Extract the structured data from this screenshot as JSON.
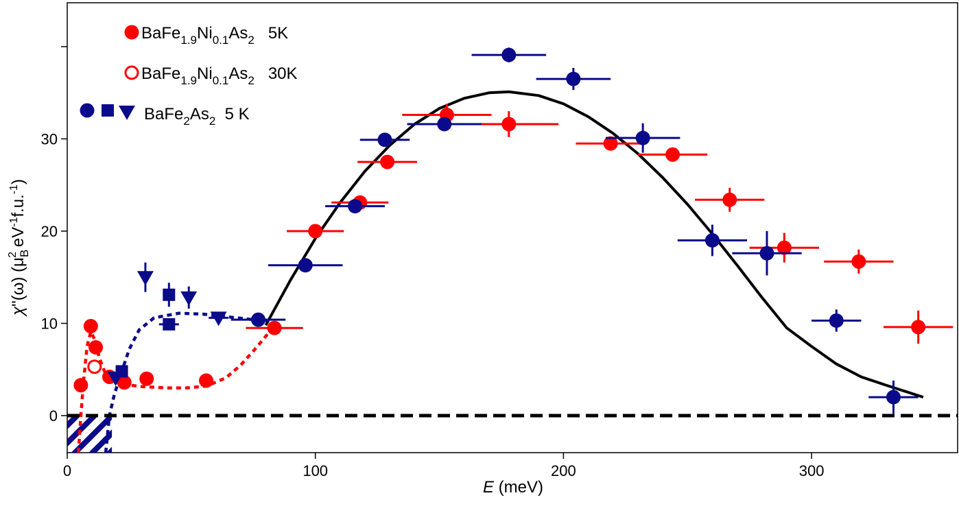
{
  "chart_data": {
    "type": "scatter",
    "xlabel_italic": "E",
    "xlabel_rest": " (meV)",
    "ylabel": {
      "chi": "χ",
      "rest1": "\"(ω) (μ",
      "sub_B": "B",
      "sup_2": "2",
      "rest2": " eV",
      "sup_m1a": "-1",
      "rest3": "f.u.",
      "sup_m1b": "-1",
      "close": ")"
    },
    "xlim": [
      0,
      360
    ],
    "ylim": [
      -4,
      45
    ],
    "xticks": [
      0,
      100,
      200,
      300
    ],
    "xtick_labels": [
      "0",
      "100",
      "200",
      "300"
    ],
    "yticks": [
      0,
      10,
      20,
      30
    ],
    "ytick_labels": [
      "0",
      "10",
      "20",
      "30"
    ],
    "y_minor_ticks": [
      40
    ],
    "colors": {
      "red": "#ff0000",
      "blue": "#0a0a8a",
      "black": "#000000"
    },
    "legend": [
      {
        "marker": "circle-filled",
        "color": "red",
        "parts": [
          [
            "BaFe",
            ""
          ],
          [
            "1.9",
            "sub"
          ],
          [
            "Ni",
            ""
          ],
          [
            "0.1",
            "sub"
          ],
          [
            "As",
            ""
          ],
          [
            "2",
            "sub"
          ],
          [
            "   5K",
            ""
          ]
        ]
      },
      {
        "marker": "circle-open",
        "color": "red",
        "parts": [
          [
            "BaFe",
            ""
          ],
          [
            "1.9",
            "sub"
          ],
          [
            "Ni",
            ""
          ],
          [
            "0.1",
            "sub"
          ],
          [
            "As",
            ""
          ],
          [
            "2",
            "sub"
          ],
          [
            "   30K",
            ""
          ]
        ]
      },
      {
        "marker": "circle-square-triangle",
        "color": "blue",
        "parts": [
          [
            "BaFe",
            ""
          ],
          [
            "2",
            "sub"
          ],
          [
            "As",
            ""
          ],
          [
            "2",
            "sub"
          ],
          [
            "  5 K",
            ""
          ]
        ]
      }
    ],
    "series": [
      {
        "name": "BaFe1.9Ni0.1As2 5K",
        "color": "red",
        "marker": "circle-filled",
        "points": [
          {
            "x": 5.5,
            "y": 3.3,
            "xerr": 0,
            "yerr": 0
          },
          {
            "x": 9.5,
            "y": 9.7,
            "xerr": 0,
            "yerr": 0
          },
          {
            "x": 11.5,
            "y": 7.4,
            "xerr": 0,
            "yerr": 0
          },
          {
            "x": 17,
            "y": 4.2,
            "xerr": 0,
            "yerr": 0
          },
          {
            "x": 23,
            "y": 3.6,
            "xerr": 0,
            "yerr": 0
          },
          {
            "x": 32,
            "y": 4.0,
            "xerr": 0,
            "yerr": 0
          },
          {
            "x": 56,
            "y": 3.8,
            "xerr": 0,
            "yerr": 0
          },
          {
            "x": 83.5,
            "y": 9.5,
            "xerr": 11.5,
            "yerr": 0
          },
          {
            "x": 100,
            "y": 20.0,
            "xerr": 11.5,
            "yerr": 0
          },
          {
            "x": 118,
            "y": 23.1,
            "xerr": 11.5,
            "yerr": 0
          },
          {
            "x": 129,
            "y": 27.5,
            "xerr": 12,
            "yerr": 0
          },
          {
            "x": 153,
            "y": 32.6,
            "xerr": 18,
            "yerr": 1.2
          },
          {
            "x": 178,
            "y": 31.6,
            "xerr": 20,
            "yerr": 1.4
          },
          {
            "x": 219,
            "y": 29.5,
            "xerr": 14,
            "yerr": 0
          },
          {
            "x": 244,
            "y": 28.3,
            "xerr": 14,
            "yerr": 0
          },
          {
            "x": 267,
            "y": 23.4,
            "xerr": 14,
            "yerr": 1.3
          },
          {
            "x": 289,
            "y": 18.2,
            "xerr": 14,
            "yerr": 1.6
          },
          {
            "x": 319,
            "y": 16.7,
            "xerr": 14,
            "yerr": 1.3
          },
          {
            "x": 343,
            "y": 9.6,
            "xerr": 14,
            "yerr": 1.8
          }
        ]
      },
      {
        "name": "BaFe1.9Ni0.1As2 30K",
        "color": "red",
        "marker": "circle-open",
        "points": [
          {
            "x": 11,
            "y": 5.3,
            "xerr": 0,
            "yerr": 0
          }
        ]
      },
      {
        "name": "BaFe2As2 5 K (circles)",
        "color": "blue",
        "marker": "circle-filled",
        "points": [
          {
            "x": 77,
            "y": 10.4,
            "xerr": 11,
            "yerr": 0
          },
          {
            "x": 96,
            "y": 16.3,
            "xerr": 15,
            "yerr": 0
          },
          {
            "x": 116,
            "y": 22.7,
            "xerr": 12,
            "yerr": 0
          },
          {
            "x": 128,
            "y": 29.9,
            "xerr": 10,
            "yerr": 0
          },
          {
            "x": 152,
            "y": 31.6,
            "xerr": 15,
            "yerr": 0
          },
          {
            "x": 178,
            "y": 39.1,
            "xerr": 15,
            "yerr": 0.8
          },
          {
            "x": 204,
            "y": 36.5,
            "xerr": 15,
            "yerr": 1.2
          },
          {
            "x": 232,
            "y": 30.1,
            "xerr": 15,
            "yerr": 1.6
          },
          {
            "x": 260,
            "y": 19.0,
            "xerr": 14,
            "yerr": 1.7
          },
          {
            "x": 282,
            "y": 17.6,
            "xerr": 14,
            "yerr": 2.4
          },
          {
            "x": 310,
            "y": 10.3,
            "xerr": 10,
            "yerr": 1.2
          },
          {
            "x": 333,
            "y": 2.0,
            "xerr": 10,
            "yerr": 1.8
          }
        ]
      },
      {
        "name": "BaFe2As2 5 K (squares)",
        "color": "blue",
        "marker": "square-filled",
        "points": [
          {
            "x": 22,
            "y": 4.8,
            "xerr": 0,
            "yerr": 0
          },
          {
            "x": 41,
            "y": 13.1,
            "xerr": 0,
            "yerr": 1.3
          },
          {
            "x": 41,
            "y": 9.9,
            "xerr": 4,
            "yerr": 0
          }
        ]
      },
      {
        "name": "BaFe2As2 5 K (triangles)",
        "color": "blue",
        "marker": "triangle-down-filled",
        "points": [
          {
            "x": 19.5,
            "y": 4.1,
            "xerr": 0,
            "yerr": 0
          },
          {
            "x": 31.5,
            "y": 15.0,
            "xerr": 0,
            "yerr": 1.6
          },
          {
            "x": 49,
            "y": 12.8,
            "xerr": 0,
            "yerr": 1.2
          },
          {
            "x": 61,
            "y": 10.6,
            "xerr": 4,
            "yerr": 0
          }
        ]
      }
    ],
    "curves": [
      {
        "name": "fit",
        "color": "black",
        "style": "solid",
        "points": [
          [
            80,
            9.8
          ],
          [
            90,
            14.7
          ],
          [
            100,
            19.2
          ],
          [
            110,
            23.1
          ],
          [
            120,
            26.5
          ],
          [
            130,
            29.3
          ],
          [
            140,
            31.6
          ],
          [
            150,
            33.3
          ],
          [
            160,
            34.4
          ],
          [
            170,
            35.0
          ],
          [
            178,
            35.1
          ],
          [
            190,
            34.7
          ],
          [
            200,
            33.8
          ],
          [
            210,
            32.4
          ],
          [
            220,
            30.6
          ],
          [
            230,
            28.4
          ],
          [
            240,
            25.8
          ],
          [
            250,
            22.9
          ],
          [
            260,
            19.7
          ],
          [
            270,
            16.3
          ],
          [
            280,
            12.8
          ],
          [
            290,
            9.5
          ],
          [
            300,
            7.5
          ],
          [
            310,
            5.6
          ],
          [
            320,
            4.2
          ],
          [
            330,
            3.3
          ],
          [
            345,
            2.0
          ]
        ]
      },
      {
        "name": "red-dashed",
        "color": "red",
        "style": "dashed",
        "points": [
          [
            4.5,
            -4
          ],
          [
            5.5,
            0
          ],
          [
            6.5,
            3.5
          ],
          [
            8,
            7.5
          ],
          [
            9.5,
            9.1
          ],
          [
            11,
            8.3
          ],
          [
            13,
            6.2
          ],
          [
            15,
            4.8
          ],
          [
            18,
            3.8
          ],
          [
            22,
            3.4
          ],
          [
            30,
            3.15
          ],
          [
            40,
            3.0
          ],
          [
            48,
            3.0
          ],
          [
            56,
            3.2
          ],
          [
            64,
            4.1
          ],
          [
            70,
            5.5
          ],
          [
            76,
            7.3
          ],
          [
            80,
            8.6
          ],
          [
            83,
            9.5
          ]
        ]
      },
      {
        "name": "blue-dashed",
        "color": "blue",
        "style": "dashed",
        "points": [
          [
            15.5,
            -4
          ],
          [
            17,
            0
          ],
          [
            19,
            2.3
          ],
          [
            22,
            4.8
          ],
          [
            25,
            7.2
          ],
          [
            29,
            9.3
          ],
          [
            35,
            10.6
          ],
          [
            45,
            11.1
          ],
          [
            55,
            11.0
          ],
          [
            65,
            10.7
          ],
          [
            75,
            10.4
          ],
          [
            82,
            10.3
          ]
        ]
      },
      {
        "name": "zero-line",
        "color": "black",
        "style": "dashed-thick",
        "points": [
          [
            0,
            0
          ],
          [
            360,
            0
          ]
        ]
      }
    ],
    "gap_regions": [
      {
        "color": "red",
        "x0": 0,
        "x1": 5
      },
      {
        "color": "blue",
        "x0": 0,
        "x1": 18
      }
    ]
  }
}
